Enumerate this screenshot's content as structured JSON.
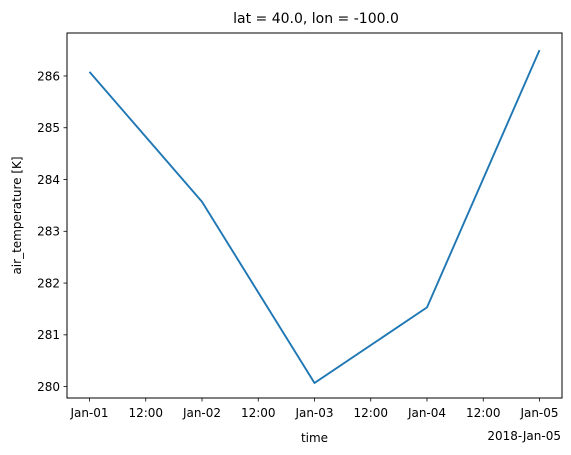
{
  "chart_data": {
    "type": "line",
    "title": "lat = 40.0, lon = -100.0",
    "xlabel": "time",
    "ylabel": "air_temperature [K]",
    "x": [
      "2018-01-01",
      "2018-01-02",
      "2018-01-03",
      "2018-01-04",
      "2018-01-05"
    ],
    "series": [
      {
        "values": [
          286.08,
          283.57,
          280.07,
          281.53,
          286.5
        ],
        "color": "#1f77b4"
      }
    ],
    "xlim": [
      "2017-12-31T19:12",
      "2018-01-05T04:48"
    ],
    "ylim": [
      279.78,
      286.83
    ],
    "xticks": [
      {
        "t": "2018-01-01T00:00",
        "label": "Jan-01"
      },
      {
        "t": "2018-01-01T12:00",
        "label": "12:00"
      },
      {
        "t": "2018-01-02T00:00",
        "label": "Jan-02"
      },
      {
        "t": "2018-01-02T12:00",
        "label": "12:00"
      },
      {
        "t": "2018-01-03T00:00",
        "label": "Jan-03"
      },
      {
        "t": "2018-01-03T12:00",
        "label": "12:00"
      },
      {
        "t": "2018-01-04T00:00",
        "label": "Jan-04"
      },
      {
        "t": "2018-01-04T12:00",
        "label": "12:00"
      },
      {
        "t": "2018-01-05T00:00",
        "label": "Jan-05"
      }
    ],
    "xaxis_offset_label": "2018-Jan-05",
    "yticks": [
      280,
      281,
      282,
      283,
      284,
      285,
      286
    ],
    "grid": false,
    "legend": "none"
  }
}
